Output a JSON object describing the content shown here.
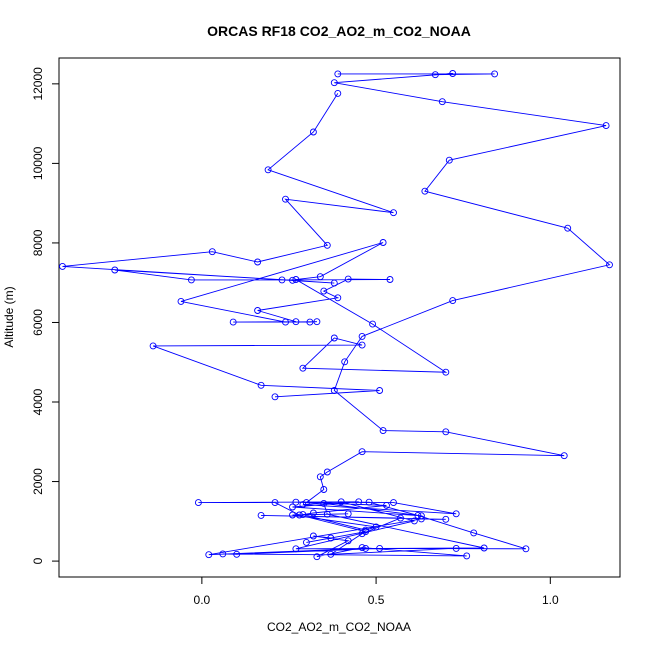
{
  "chart_data": {
    "type": "line",
    "title": "ORCAS RF18 CO2_AO2_m_CO2_NOAA",
    "xlabel": "CO2_AO2_m_CO2_NOAA",
    "ylabel": "Altitude (m)",
    "xlim": [
      -0.41,
      1.2
    ],
    "ylim": [
      -400,
      12650
    ],
    "x_ticks": [
      0.0,
      0.5,
      1.0
    ],
    "x_tick_labels": [
      "0.0",
      "0.5",
      "1.0"
    ],
    "y_ticks": [
      0,
      2000,
      4000,
      6000,
      8000,
      10000,
      12000
    ],
    "y_tick_labels": [
      "0",
      "2000",
      "4000",
      "6000",
      "8000",
      "10000",
      "12000"
    ],
    "grid": false,
    "series_color": "#0000ff",
    "markers": "open-circle",
    "series": [
      {
        "points": [
          [
            0.39,
            12250
          ],
          [
            0.84,
            12250
          ],
          [
            0.67,
            12230
          ],
          [
            0.72,
            12260
          ],
          [
            0.38,
            12030
          ],
          [
            0.69,
            11550
          ],
          [
            1.16,
            10950
          ],
          [
            0.71,
            10080
          ],
          [
            0.64,
            9300
          ],
          [
            1.05,
            8370
          ],
          [
            1.17,
            7450
          ],
          [
            0.72,
            6550
          ],
          [
            0.46,
            5650
          ],
          [
            0.41,
            5010
          ],
          [
            0.38,
            4290
          ],
          [
            0.52,
            3280
          ],
          [
            0.7,
            3250
          ],
          [
            1.04,
            2650
          ],
          [
            0.46,
            2750
          ],
          [
            0.36,
            2240
          ],
          [
            0.34,
            2120
          ],
          [
            0.35,
            1800
          ],
          [
            0.3,
            1470
          ],
          [
            0.48,
            1480
          ],
          [
            0.62,
            1150
          ],
          [
            0.78,
            710
          ],
          [
            0.93,
            310
          ],
          [
            0.47,
            320
          ],
          [
            0.02,
            160
          ],
          [
            0.63,
            1060
          ],
          [
            0.7,
            1050
          ],
          [
            0.17,
            1150
          ],
          [
            0.57,
            1080
          ],
          [
            0.46,
            690
          ],
          [
            0.37,
            170
          ],
          [
            0.73,
            320
          ],
          [
            0.51,
            320
          ],
          [
            0.1,
            170
          ],
          [
            0.06,
            180
          ],
          [
            0.76,
            130
          ],
          [
            0.46,
            340
          ],
          [
            0.33,
            110
          ],
          [
            0.42,
            510
          ],
          [
            0.32,
            630
          ],
          [
            0.37,
            580
          ],
          [
            0.3,
            470
          ],
          [
            0.47,
            740
          ],
          [
            0.28,
            1160
          ],
          [
            0.21,
            1470
          ],
          [
            -0.01,
            1470
          ],
          [
            0.45,
            1490
          ],
          [
            0.26,
            1360
          ],
          [
            0.63,
            1140
          ],
          [
            0.35,
            1450
          ],
          [
            0.36,
            1180
          ],
          [
            0.81,
            330
          ],
          [
            0.27,
            310
          ],
          [
            0.61,
            1010
          ],
          [
            0.4,
            1490
          ],
          [
            0.29,
            1420
          ],
          [
            0.73,
            1190
          ],
          [
            0.55,
            1470
          ],
          [
            0.27,
            1480
          ],
          [
            0.53,
            1400
          ],
          [
            0.32,
            1210
          ],
          [
            0.29,
            1170
          ],
          [
            0.47,
            780
          ],
          [
            0.5,
            860
          ],
          [
            0.26,
            1160
          ],
          [
            0.42,
            1190
          ]
        ]
      },
      {
        "points": [
          [
            0.39,
            11760
          ],
          [
            0.32,
            10790
          ],
          [
            0.19,
            9840
          ],
          [
            0.55,
            8760
          ],
          [
            0.24,
            9100
          ],
          [
            0.36,
            7940
          ],
          [
            0.16,
            7520
          ],
          [
            0.03,
            7780
          ],
          [
            -0.4,
            7410
          ],
          [
            0.38,
            6990
          ],
          [
            0.26,
            7060
          ],
          [
            -0.25,
            7320
          ],
          [
            -0.03,
            7070
          ],
          [
            0.23,
            7070
          ],
          [
            0.54,
            7080
          ],
          [
            0.42,
            7090
          ],
          [
            0.35,
            6790
          ],
          [
            0.39,
            6620
          ],
          [
            0.16,
            6300
          ],
          [
            0.27,
            6020
          ],
          [
            0.09,
            6010
          ],
          [
            0.31,
            6010
          ],
          [
            0.33,
            6020
          ],
          [
            0.24,
            6010
          ],
          [
            -0.06,
            6530
          ],
          [
            0.52,
            8010
          ],
          [
            0.34,
            7150
          ],
          [
            0.27,
            7080
          ],
          [
            0.49,
            5960
          ],
          [
            0.7,
            4750
          ],
          [
            0.29,
            4850
          ],
          [
            0.38,
            5610
          ],
          [
            0.46,
            5430
          ],
          [
            -0.14,
            5410
          ],
          [
            0.17,
            4420
          ],
          [
            0.51,
            4290
          ],
          [
            0.21,
            4130
          ]
        ]
      }
    ]
  }
}
